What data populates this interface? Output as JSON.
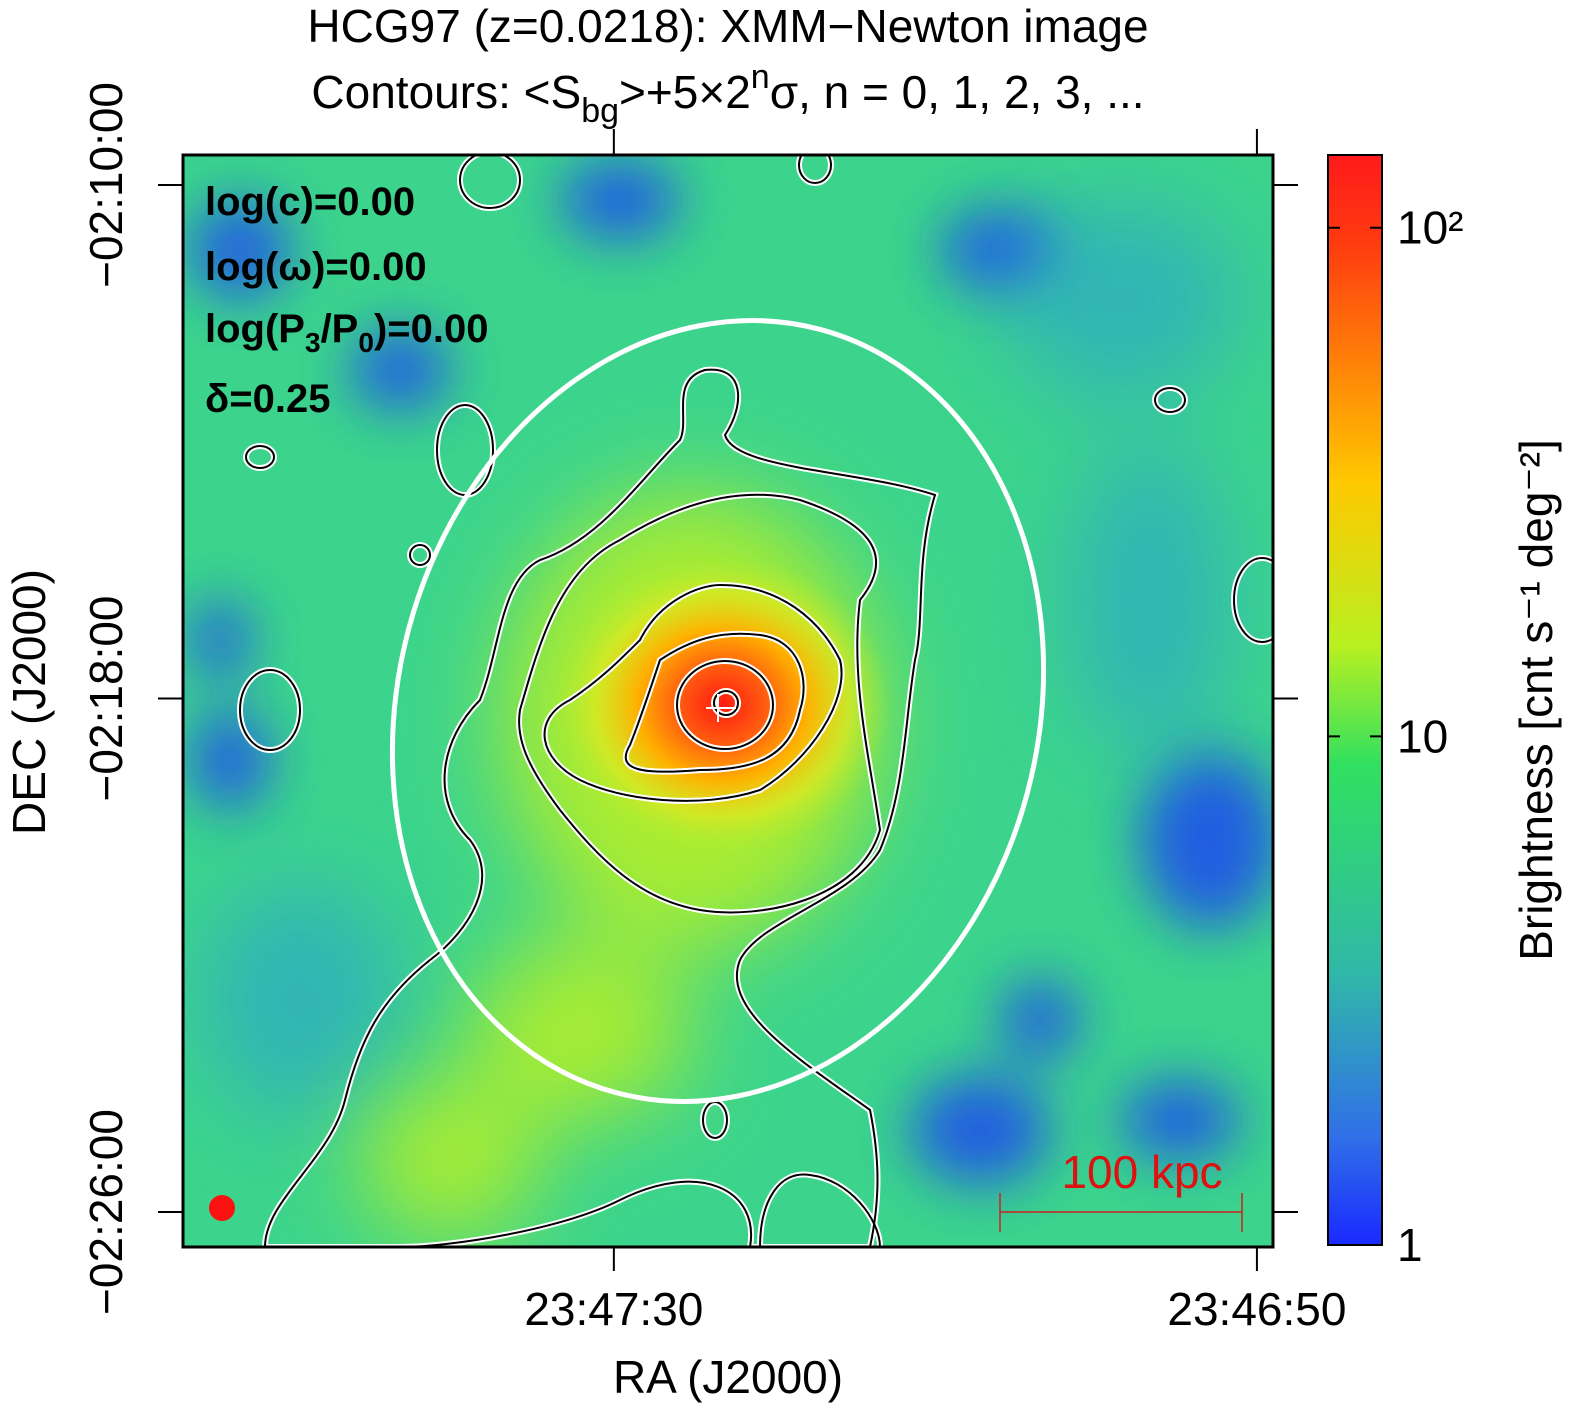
{
  "chart_data": {
    "type": "image",
    "title": "HCG97 (z=0.0218): XMM−Newton image",
    "subtitle_parts": [
      "Contours: <S",
      "bg",
      ">+5×2",
      "n",
      "σ, n = 0, 1, 2, 3, ..."
    ],
    "x_label": "RA (J2000)",
    "y_label": "DEC (J2000)",
    "xlim": [
      85676.8,
      85609.0
    ],
    "xticks": [
      {
        "value": 85650,
        "label": "23:47:30"
      },
      {
        "value": 85610,
        "label": "23:46:50"
      }
    ],
    "ylim": [
      -8792.7,
      -7772
    ],
    "yticks": [
      {
        "value": -7800,
        "label": "−02:10:00"
      },
      {
        "value": -8280,
        "label": "−02:18:00"
      },
      {
        "value": -8760,
        "label": "−02:26:00"
      }
    ],
    "colorbar": {
      "label": "Brightness [cnt s⁻¹ deg⁻²]",
      "scale": "log",
      "lim": [
        1,
        139
      ],
      "ticks": [
        1,
        10,
        {
          "value": 100,
          "label": "10²"
        }
      ]
    },
    "annotations": {
      "log_c": "log(c)=0.00",
      "log_omega": "log(ω)=0.00",
      "log_p_parts": [
        "log(P",
        "3",
        "/P",
        "0",
        ")=0.00"
      ],
      "delta": "δ=0.25",
      "scale_bar": "100 kpc"
    }
  }
}
